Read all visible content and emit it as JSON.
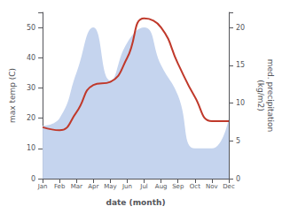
{
  "chart_data": {
    "type": "line",
    "xlabel": "date (month)",
    "ylabel": "max temp (C)",
    "y2label": "med. precipitation\n(kg/m2)",
    "categories": [
      "Jan",
      "Feb",
      "Mar",
      "Apr",
      "May",
      "Jun",
      "Jul",
      "Aug",
      "Sep",
      "Oct",
      "Nov",
      "Dec"
    ],
    "series": [
      {
        "type": "area",
        "axis": "y2",
        "color": "#c5d4ee",
        "values": [
          7,
          8,
          14,
          20,
          13,
          18,
          20,
          15,
          11,
          4,
          4,
          8
        ]
      },
      {
        "type": "line",
        "color": "#c0392b",
        "values": [
          17,
          16,
          22,
          31,
          32,
          40,
          53,
          50,
          38,
          27,
          19,
          19
        ]
      }
    ],
    "ylim": [
      0,
      55
    ],
    "yticks": [
      0,
      10,
      20,
      30,
      40,
      50
    ],
    "y2lim": [
      0,
      22
    ],
    "y2ticks": [
      0,
      5,
      10,
      15,
      20
    ],
    "grid": false
  }
}
